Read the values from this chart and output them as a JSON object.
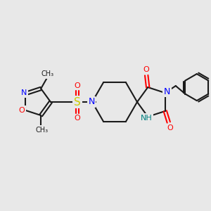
{
  "bg_color": "#e8e8e8",
  "bond_color": "#1a1a1a",
  "N_color": "#0000ff",
  "O_color": "#ff0000",
  "S_color": "#cccc00",
  "NH_color": "#008080",
  "figsize": [
    3.0,
    3.0
  ],
  "dpi": 100,
  "xlim": [
    0,
    300
  ],
  "ylim": [
    0,
    300
  ]
}
